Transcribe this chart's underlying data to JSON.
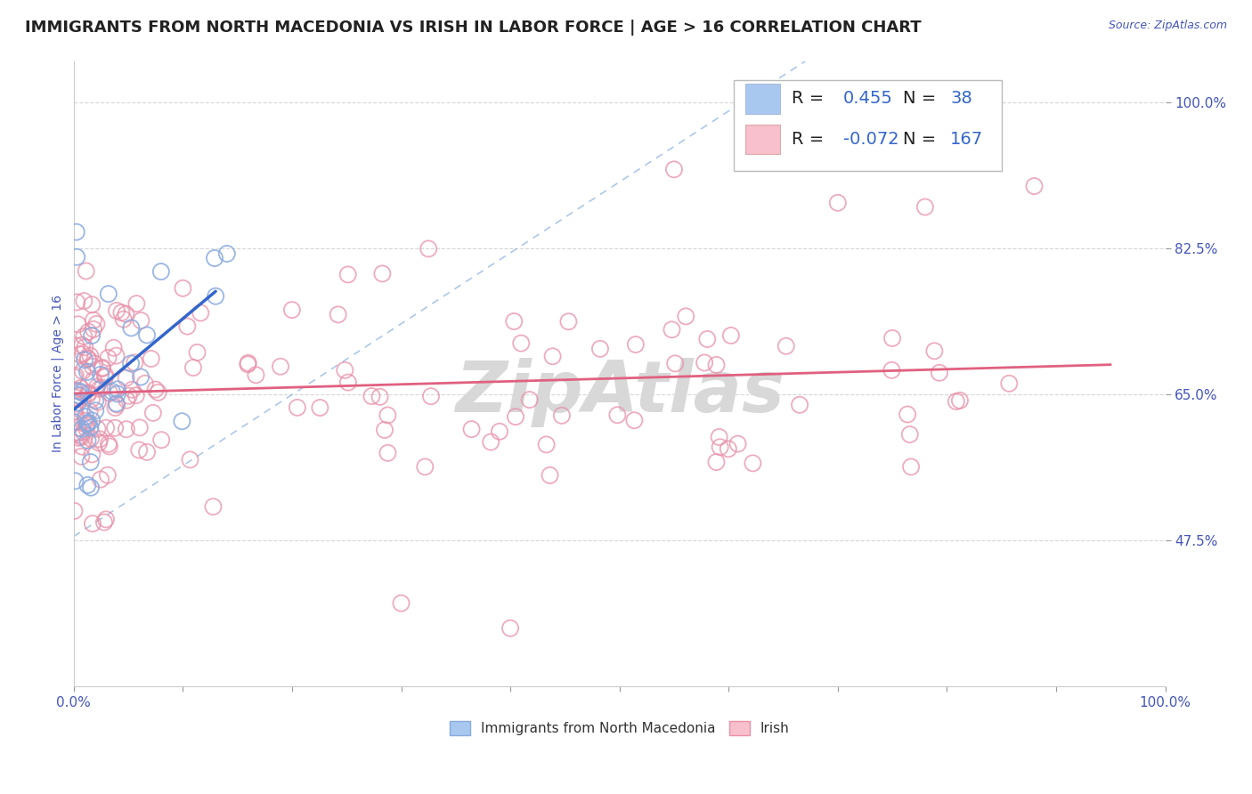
{
  "title": "IMMIGRANTS FROM NORTH MACEDONIA VS IRISH IN LABOR FORCE | AGE > 16 CORRELATION CHART",
  "source_text": "Source: ZipAtlas.com",
  "ylabel": "In Labor Force | Age > 16",
  "r_macedonia": 0.455,
  "n_macedonia": 38,
  "r_irish": -0.072,
  "n_irish": 167,
  "xlim": [
    0.0,
    1.0
  ],
  "ylim": [
    0.3,
    1.05
  ],
  "xtick_positions": [
    0.0,
    0.1,
    0.2,
    0.3,
    0.4,
    0.5,
    0.6,
    0.7,
    0.8,
    0.9,
    1.0
  ],
  "xticklabels": [
    "0.0%",
    "",
    "",
    "",
    "",
    "",
    "",
    "",
    "",
    "",
    "100.0%"
  ],
  "ytick_positions": [
    0.475,
    0.65,
    0.825,
    1.0
  ],
  "ytick_labels": [
    "47.5%",
    "65.0%",
    "82.5%",
    "100.0%"
  ],
  "macedonian_color": "#a8c8f0",
  "macedonian_edge_color": "#88aae0",
  "macedonian_line_color": "#3366cc",
  "irish_color": "#f8c0cc",
  "irish_edge_color": "#e890a8",
  "irish_line_color": "#e06080",
  "diag_line_color": "#8ab0e0",
  "title_color": "#222222",
  "axis_label_color": "#4455bb",
  "tick_color": "#4455bb",
  "grid_color": "#cccccc",
  "background_color": "#ffffff",
  "watermark_text": "ZipAtlas",
  "watermark_color": "#d8d8d8",
  "title_fontsize": 13,
  "axis_label_fontsize": 10,
  "tick_fontsize": 11,
  "legend_r_color": "#3366cc",
  "legend_n_color": "#3366cc",
  "legend_fontsize": 14
}
